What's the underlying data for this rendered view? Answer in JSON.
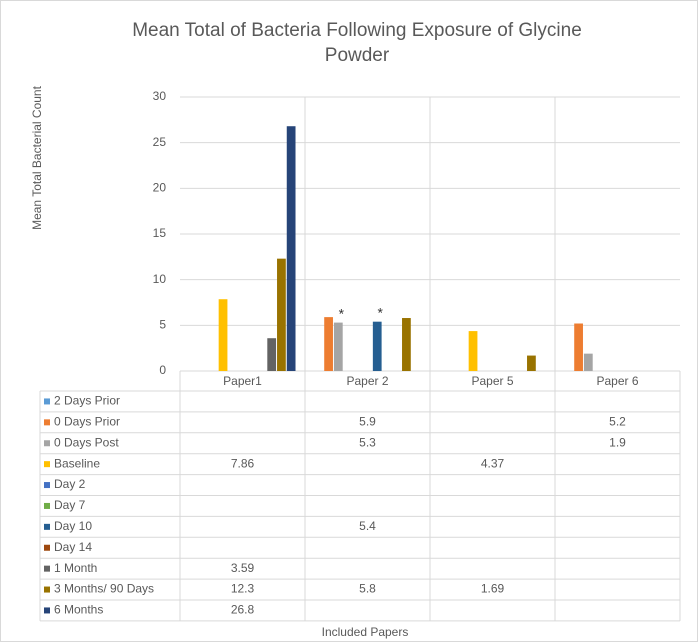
{
  "chart_data": {
    "type": "bar",
    "title": [
      "Mean Total of Bacteria Following Exposure of Glycine",
      "Powder"
    ],
    "y_label": "Mean Total Bacterial Count",
    "x_label": "Included Papers",
    "categories": [
      "Paper1",
      "Paper 2",
      "Paper 5",
      "Paper 6"
    ],
    "ylim": [
      0,
      30
    ],
    "yticks": [
      0,
      5,
      10,
      15,
      20,
      25,
      30
    ],
    "grid": true,
    "data_table": true,
    "series": [
      {
        "name": "2 Days Prior",
        "color": "#5b9bd5",
        "values": [
          null,
          null,
          null,
          null
        ]
      },
      {
        "name": "0 Days Prior",
        "color": "#ed7d31",
        "values": [
          null,
          5.9,
          null,
          5.2
        ]
      },
      {
        "name": "0 Days Post",
        "color": "#a5a5a5",
        "values": [
          null,
          5.3,
          null,
          1.9
        ]
      },
      {
        "name": "Baseline",
        "color": "#ffc000",
        "values": [
          7.86,
          null,
          4.37,
          null
        ]
      },
      {
        "name": "Day 2",
        "color": "#4472c4",
        "values": [
          null,
          null,
          null,
          null
        ]
      },
      {
        "name": "Day 7",
        "color": "#70ad47",
        "values": [
          null,
          null,
          null,
          null
        ]
      },
      {
        "name": "Day 10",
        "color": "#255e91",
        "values": [
          null,
          5.4,
          null,
          null
        ]
      },
      {
        "name": "Day 14",
        "color": "#9e480e",
        "values": [
          null,
          null,
          null,
          null
        ]
      },
      {
        "name": "1 Month",
        "color": "#636363",
        "values": [
          3.59,
          null,
          null,
          null
        ]
      },
      {
        "name": "3 Months/ 90 Days",
        "color": "#997300",
        "values": [
          12.3,
          5.8,
          1.69,
          null
        ]
      },
      {
        "name": "6 Months",
        "color": "#264478",
        "values": [
          26.8,
          null,
          null,
          null
        ]
      }
    ],
    "annotations": [
      {
        "text": "*",
        "series": "0 Days Post",
        "category": "Paper 2"
      },
      {
        "text": "*",
        "series": "Day 10",
        "category": "Paper 2"
      }
    ]
  }
}
